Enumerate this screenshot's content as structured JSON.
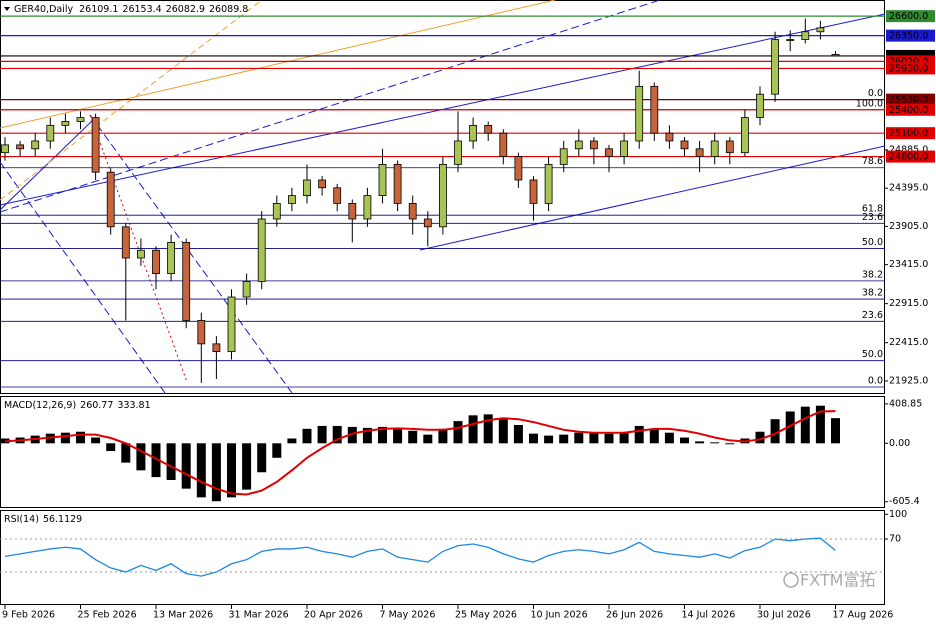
{
  "chart_data": [
    {
      "type": "candlestick",
      "title": "GER40,Daily",
      "categories": [
        "9 Feb 2026",
        null,
        null,
        null,
        null,
        "25 Feb 2026",
        null,
        null,
        null,
        null,
        "13 Mar 2026",
        null,
        null,
        null,
        null,
        "31 Mar 2026",
        null,
        null,
        null,
        null,
        "20 Apr 2026",
        null,
        null,
        null,
        null,
        "7 May 2026",
        null,
        null,
        null,
        null,
        "25 May 2026",
        null,
        null,
        null,
        null,
        "10 Jun 2026",
        null,
        null,
        null,
        null,
        "26 Jun 2026",
        null,
        null,
        null,
        null,
        "14 Jul 2026",
        null,
        null,
        null,
        null,
        "30 Jul 2026",
        null,
        null,
        null,
        null,
        "17 Aug 2026"
      ],
      "open": [
        24850,
        24950,
        24900,
        25000,
        25200,
        25250,
        25300,
        24600,
        23900,
        23500,
        23600,
        23300,
        23700,
        22700,
        22400,
        22300,
        23000,
        23200,
        24000,
        24200,
        24300,
        24500,
        24400,
        24200,
        24000,
        24300,
        24700,
        24200,
        24000,
        23900,
        24700,
        25000,
        25200,
        25100,
        24800,
        24500,
        24200,
        24700,
        24900,
        25000,
        24900,
        24800,
        25000,
        25700,
        25100,
        25000,
        24900,
        24800,
        25000,
        24850,
        25300,
        25600,
        26300,
        26300,
        26400,
        26109.1
      ],
      "high": [
        25050,
        25000,
        25100,
        25300,
        25350,
        25380,
        25350,
        24650,
        23950,
        23750,
        23650,
        23800,
        23750,
        22800,
        22500,
        23100,
        23300,
        24100,
        24300,
        24400,
        24700,
        24550,
        24450,
        24250,
        24400,
        24900,
        24750,
        24300,
        24100,
        24800,
        25380,
        25300,
        25250,
        25150,
        24850,
        24550,
        24800,
        25000,
        25150,
        25050,
        24950,
        25100,
        25900,
        25750,
        25200,
        25050,
        25000,
        25100,
        25050,
        25400,
        25700,
        26400,
        26420,
        26570,
        26540,
        26153.4
      ],
      "low": [
        24750,
        24800,
        24800,
        24900,
        25100,
        25150,
        24500,
        23800,
        22700,
        23400,
        23100,
        23200,
        22600,
        21900,
        21950,
        22200,
        22900,
        23100,
        23900,
        24100,
        24200,
        24300,
        24100,
        23700,
        23900,
        24200,
        24100,
        23800,
        23650,
        23800,
        24600,
        24900,
        25000,
        24700,
        24400,
        23980,
        24100,
        24600,
        24800,
        24700,
        24600,
        24700,
        24900,
        25000,
        24900,
        24800,
        24600,
        24700,
        24700,
        24800,
        25200,
        25500,
        26150,
        26250,
        26300,
        26082.9
      ],
      "close": [
        24950,
        24900,
        25000,
        25200,
        25250,
        25300,
        24600,
        23900,
        23500,
        23600,
        23300,
        23700,
        22700,
        22400,
        22300,
        23000,
        23200,
        24000,
        24200,
        24300,
        24500,
        24400,
        24200,
        24000,
        24300,
        24700,
        24200,
        24000,
        23900,
        24700,
        25000,
        25200,
        25100,
        24800,
        24500,
        24200,
        24700,
        24900,
        25000,
        24900,
        24800,
        25000,
        25700,
        25100,
        25000,
        24900,
        24800,
        25000,
        24850,
        25300,
        25600,
        26300,
        26300,
        26400,
        26450,
        26089.8
      ],
      "up_color": "#a8c455",
      "down_color": "#c8643c",
      "ylim": [
        21770,
        26794
      ],
      "yticks": [
        {
          "value": 24885,
          "label": "24885.0"
        },
        {
          "value": 24395,
          "label": "24395.0"
        },
        {
          "value": 23905,
          "label": "23905.0"
        },
        {
          "value": 23415,
          "label": "23415.0"
        },
        {
          "value": 22915,
          "label": "22915.0"
        },
        {
          "value": 22415,
          "label": "22415.0"
        },
        {
          "value": 21925,
          "label": "21925.0"
        }
      ],
      "levels": [
        {
          "value": 26600,
          "label": "26600.0",
          "color": "#2e8b2e"
        },
        {
          "value": 26350,
          "label": "26350.0",
          "color": "#1a1ad0"
        },
        {
          "value": 26089.8,
          "label": "26089.8",
          "color": "#000000"
        },
        {
          "value": 26020,
          "label": "26020.0",
          "color": "#e00000"
        },
        {
          "value": 25930,
          "label": "25930.0",
          "color": "#e00000"
        },
        {
          "value": 25530,
          "label": "25530.0",
          "color": "#800000"
        },
        {
          "value": 25400,
          "label": "25400.0",
          "color": "#e00000"
        },
        {
          "value": 25100,
          "label": "25100.0",
          "color": "#e00000"
        },
        {
          "value": 24800,
          "label": "24800.0",
          "color": "#e00000"
        }
      ],
      "fib_levels": [
        {
          "value": 25530,
          "label": "0.0"
        },
        {
          "value": 25400,
          "label": "100.0"
        },
        {
          "value": 24657,
          "label": "78.6"
        },
        {
          "value": 24049,
          "label": "61.8"
        },
        {
          "value": 23945,
          "label": "23.6"
        },
        {
          "value": 23621,
          "label": "50.0"
        },
        {
          "value": 23207,
          "label": "38.2"
        },
        {
          "value": 22974,
          "label": "38.2"
        },
        {
          "value": 22689,
          "label": "23.6"
        },
        {
          "value": 22184,
          "label": "50.0"
        },
        {
          "value": 21847,
          "label": "0.0"
        }
      ]
    },
    {
      "type": "macd",
      "title": "MACD(12,26,9)",
      "series": [
        {
          "name": "MACD",
          "color": "#000000",
          "values": [
            50,
            60,
            80,
            100,
            110,
            120,
            60,
            -80,
            -200,
            -280,
            -350,
            -380,
            -470,
            -560,
            -600,
            -560,
            -480,
            -300,
            -150,
            50,
            150,
            180,
            180,
            170,
            160,
            170,
            160,
            130,
            90,
            150,
            230,
            290,
            300,
            260,
            190,
            100,
            80,
            90,
            110,
            110,
            100,
            110,
            180,
            150,
            110,
            60,
            20,
            10,
            -10,
            50,
            120,
            250,
            330,
            380,
            390,
            260.77
          ]
        },
        {
          "name": "Signal",
          "color": "#e00000",
          "values": [
            20,
            30,
            45,
            60,
            75,
            90,
            90,
            55,
            0,
            -80,
            -160,
            -240,
            -320,
            -400,
            -470,
            -520,
            -530,
            -490,
            -400,
            -280,
            -150,
            -50,
            40,
            100,
            130,
            150,
            155,
            150,
            140,
            140,
            160,
            200,
            240,
            260,
            250,
            220,
            180,
            140,
            120,
            110,
            110,
            110,
            130,
            150,
            150,
            130,
            100,
            60,
            30,
            20,
            40,
            100,
            180,
            260,
            330,
            333.81
          ]
        }
      ],
      "ylim": [
        -660,
        480
      ],
      "yticks": [
        408.85,
        {
          "value": 0,
          "label": "0.00"
        },
        -605.4
      ]
    },
    {
      "type": "line",
      "title": "RSI(14)",
      "values": [
        49,
        52,
        55,
        58,
        60,
        58,
        45,
        35,
        30,
        38,
        32,
        40,
        28,
        25,
        30,
        40,
        45,
        55,
        58,
        58,
        60,
        55,
        52,
        48,
        55,
        58,
        48,
        45,
        42,
        55,
        62,
        64,
        60,
        52,
        46,
        42,
        50,
        55,
        57,
        55,
        52,
        57,
        66,
        55,
        52,
        50,
        48,
        52,
        47,
        56,
        60,
        70,
        68,
        70,
        71,
        56.1129
      ],
      "color": "#1e88e5",
      "ylim": [
        -10,
        104
      ],
      "yticks": [
        100,
        70
      ],
      "levels": [
        70,
        30
      ]
    }
  ],
  "watermark": "FXTM富拓"
}
